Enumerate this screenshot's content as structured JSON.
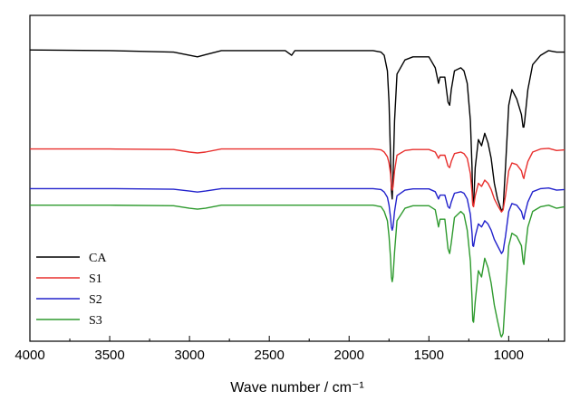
{
  "chart_data": {
    "type": "line",
    "title": "",
    "xlabel": "Wave number / cm⁻¹",
    "ylabel": "",
    "xlim": [
      4000,
      650
    ],
    "x_inverted": true,
    "xticks": [
      4000,
      3500,
      3000,
      2500,
      2000,
      1500,
      1000
    ],
    "xtick_labels": [
      "4000",
      "3500",
      "3000",
      "2500",
      "2000",
      "1500",
      "1000"
    ],
    "ylim": [
      0,
      1
    ],
    "grid": false,
    "legend": {
      "placement": "bottom-left",
      "entries": [
        "CA",
        "S1",
        "S2",
        "S3"
      ]
    },
    "series": [
      {
        "name": "CA",
        "color": "#000000",
        "x": [
          4000,
          3500,
          3100,
          3000,
          2950,
          2900,
          2800,
          2400,
          2360,
          2340,
          1850,
          1800,
          1780,
          1760,
          1750,
          1740,
          1735,
          1730,
          1725,
          1715,
          1700,
          1650,
          1600,
          1500,
          1460,
          1440,
          1430,
          1400,
          1380,
          1370,
          1360,
          1340,
          1300,
          1280,
          1260,
          1240,
          1230,
          1225,
          1220,
          1210,
          1190,
          1170,
          1160,
          1150,
          1130,
          1110,
          1090,
          1070,
          1050,
          1045,
          1035,
          1020,
          1000,
          980,
          950,
          920,
          910,
          905,
          900,
          880,
          850,
          800,
          750,
          700,
          650
        ],
        "values": [
          0.927,
          0.925,
          0.92,
          0.91,
          0.905,
          0.912,
          0.925,
          0.925,
          0.91,
          0.925,
          0.925,
          0.92,
          0.91,
          0.86,
          0.76,
          0.58,
          0.48,
          0.45,
          0.52,
          0.7,
          0.85,
          0.895,
          0.905,
          0.905,
          0.87,
          0.82,
          0.84,
          0.84,
          0.76,
          0.75,
          0.8,
          0.86,
          0.87,
          0.86,
          0.82,
          0.7,
          0.55,
          0.43,
          0.43,
          0.55,
          0.64,
          0.62,
          0.64,
          0.66,
          0.63,
          0.58,
          0.5,
          0.45,
          0.42,
          0.41,
          0.42,
          0.55,
          0.75,
          0.8,
          0.77,
          0.72,
          0.68,
          0.68,
          0.7,
          0.8,
          0.88,
          0.91,
          0.925,
          0.92,
          0.92
        ]
      },
      {
        "name": "S1",
        "color": "#e8302e",
        "x": [
          4000,
          3500,
          3100,
          3000,
          2950,
          2900,
          2800,
          1850,
          1800,
          1780,
          1760,
          1750,
          1740,
          1735,
          1730,
          1725,
          1715,
          1700,
          1650,
          1600,
          1500,
          1460,
          1440,
          1430,
          1400,
          1380,
          1370,
          1360,
          1340,
          1300,
          1280,
          1260,
          1240,
          1230,
          1225,
          1220,
          1210,
          1190,
          1170,
          1160,
          1150,
          1130,
          1110,
          1090,
          1070,
          1050,
          1045,
          1035,
          1020,
          1000,
          980,
          950,
          920,
          910,
          905,
          900,
          880,
          850,
          800,
          750,
          700,
          650
        ],
        "values": [
          0.61,
          0.61,
          0.608,
          0.6,
          0.597,
          0.6,
          0.61,
          0.61,
          0.607,
          0.6,
          0.585,
          0.565,
          0.53,
          0.49,
          0.478,
          0.488,
          0.54,
          0.59,
          0.605,
          0.608,
          0.608,
          0.6,
          0.58,
          0.59,
          0.59,
          0.555,
          0.55,
          0.57,
          0.595,
          0.6,
          0.595,
          0.58,
          0.53,
          0.47,
          0.43,
          0.425,
          0.46,
          0.5,
          0.49,
          0.5,
          0.51,
          0.5,
          0.48,
          0.45,
          0.43,
          0.412,
          0.408,
          0.415,
          0.46,
          0.54,
          0.565,
          0.56,
          0.54,
          0.52,
          0.515,
          0.53,
          0.57,
          0.6,
          0.61,
          0.612,
          0.605,
          0.607
        ]
      },
      {
        "name": "S2",
        "color": "#2222cc",
        "x": [
          4000,
          3500,
          3100,
          3000,
          2950,
          2900,
          2800,
          1850,
          1800,
          1780,
          1760,
          1750,
          1740,
          1735,
          1730,
          1725,
          1715,
          1700,
          1650,
          1600,
          1500,
          1460,
          1440,
          1430,
          1400,
          1380,
          1370,
          1360,
          1340,
          1300,
          1280,
          1260,
          1240,
          1230,
          1225,
          1220,
          1210,
          1190,
          1170,
          1160,
          1150,
          1130,
          1110,
          1090,
          1070,
          1050,
          1045,
          1035,
          1020,
          1000,
          980,
          950,
          920,
          910,
          905,
          900,
          880,
          850,
          800,
          750,
          700,
          650
        ],
        "values": [
          0.483,
          0.483,
          0.481,
          0.475,
          0.472,
          0.475,
          0.483,
          0.483,
          0.48,
          0.472,
          0.455,
          0.43,
          0.39,
          0.36,
          0.35,
          0.36,
          0.41,
          0.46,
          0.478,
          0.482,
          0.482,
          0.473,
          0.45,
          0.462,
          0.462,
          0.425,
          0.42,
          0.44,
          0.468,
          0.473,
          0.468,
          0.45,
          0.4,
          0.34,
          0.3,
          0.298,
          0.33,
          0.37,
          0.36,
          0.37,
          0.38,
          0.37,
          0.35,
          0.32,
          0.3,
          0.28,
          0.275,
          0.283,
          0.33,
          0.41,
          0.435,
          0.43,
          0.41,
          0.39,
          0.385,
          0.4,
          0.44,
          0.473,
          0.483,
          0.485,
          0.478,
          0.48
        ]
      },
      {
        "name": "S3",
        "color": "#2e9a2e",
        "x": [
          4000,
          3500,
          3100,
          3000,
          2950,
          2900,
          2800,
          1850,
          1800,
          1780,
          1760,
          1750,
          1740,
          1735,
          1730,
          1725,
          1715,
          1700,
          1650,
          1600,
          1500,
          1460,
          1440,
          1430,
          1400,
          1380,
          1370,
          1360,
          1340,
          1300,
          1280,
          1260,
          1240,
          1230,
          1225,
          1220,
          1210,
          1190,
          1170,
          1160,
          1150,
          1130,
          1110,
          1090,
          1070,
          1050,
          1045,
          1035,
          1020,
          1000,
          980,
          950,
          920,
          910,
          905,
          900,
          880,
          850,
          800,
          750,
          700,
          650
        ],
        "values": [
          0.43,
          0.43,
          0.428,
          0.42,
          0.417,
          0.42,
          0.43,
          0.43,
          0.425,
          0.41,
          0.38,
          0.33,
          0.26,
          0.2,
          0.185,
          0.2,
          0.28,
          0.38,
          0.42,
          0.428,
          0.428,
          0.415,
          0.36,
          0.385,
          0.385,
          0.29,
          0.275,
          0.31,
          0.39,
          0.41,
          0.4,
          0.35,
          0.25,
          0.13,
          0.06,
          0.055,
          0.12,
          0.22,
          0.2,
          0.23,
          0.26,
          0.23,
          0.18,
          0.11,
          0.06,
          0.012,
          0.008,
          0.02,
          0.14,
          0.3,
          0.34,
          0.33,
          0.3,
          0.25,
          0.24,
          0.27,
          0.36,
          0.41,
          0.425,
          0.43,
          0.42,
          0.425
        ]
      }
    ]
  }
}
